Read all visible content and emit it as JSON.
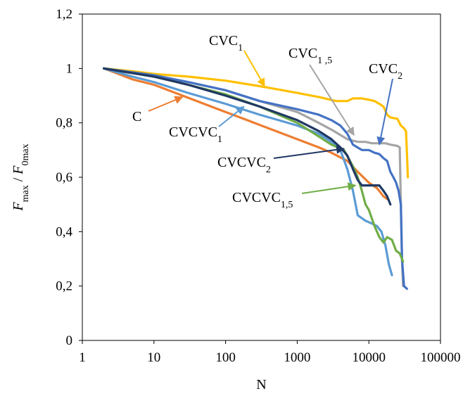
{
  "chart_data": {
    "type": "line",
    "xlabel": "N",
    "ylabel": {
      "f": "F",
      "max": "max",
      "sep": " / ",
      "f0": "F",
      "zeromax": "0max"
    },
    "xscale": "log",
    "xlim": [
      1,
      100000
    ],
    "ylim": [
      0,
      1.2
    ],
    "x_ticks": [
      "1",
      "10",
      "100",
      "1000",
      "10000",
      "100000"
    ],
    "y_ticks": [
      "0",
      "0,2",
      "0,4",
      "0,6",
      "0,8",
      "1",
      "1,2"
    ],
    "grid": false,
    "legend": "none",
    "series": [
      {
        "label_main": "C",
        "label_sub": "",
        "color": "#ED7D31",
        "points": [
          [
            2,
            1.0
          ],
          [
            5,
            0.96
          ],
          [
            10,
            0.94
          ],
          [
            20,
            0.91
          ],
          [
            50,
            0.87
          ],
          [
            100,
            0.84
          ],
          [
            200,
            0.81
          ],
          [
            500,
            0.77
          ],
          [
            1000,
            0.74
          ],
          [
            2000,
            0.71
          ],
          [
            3000,
            0.69
          ],
          [
            5000,
            0.66
          ],
          [
            7000,
            0.62
          ],
          [
            10000,
            0.58
          ],
          [
            13000,
            0.56
          ],
          [
            16000,
            0.53
          ],
          [
            18000,
            0.52
          ]
        ]
      },
      {
        "label_main": "CVC",
        "label_sub": "1",
        "color": "#FFC000",
        "points": [
          [
            2,
            1.0
          ],
          [
            5,
            0.99
          ],
          [
            10,
            0.98
          ],
          [
            30,
            0.97
          ],
          [
            100,
            0.955
          ],
          [
            300,
            0.935
          ],
          [
            1000,
            0.91
          ],
          [
            2000,
            0.895
          ],
          [
            3500,
            0.88
          ],
          [
            5000,
            0.88
          ],
          [
            6000,
            0.89
          ],
          [
            8000,
            0.89
          ],
          [
            10000,
            0.885
          ],
          [
            12000,
            0.88
          ],
          [
            14000,
            0.87
          ],
          [
            16000,
            0.86
          ],
          [
            18000,
            0.83
          ],
          [
            20000,
            0.82
          ],
          [
            25000,
            0.815
          ],
          [
            28000,
            0.79
          ],
          [
            31000,
            0.78
          ],
          [
            33000,
            0.77
          ],
          [
            34000,
            0.69
          ],
          [
            35000,
            0.6
          ]
        ]
      },
      {
        "label_main": "CVC",
        "label_sub": "1,5",
        "color": "#A5A5A5",
        "points": [
          [
            2,
            1.0
          ],
          [
            10,
            0.975
          ],
          [
            30,
            0.95
          ],
          [
            100,
            0.92
          ],
          [
            300,
            0.88
          ],
          [
            1000,
            0.84
          ],
          [
            2000,
            0.8
          ],
          [
            3000,
            0.775
          ],
          [
            5000,
            0.74
          ],
          [
            7000,
            0.73
          ],
          [
            9000,
            0.73
          ],
          [
            11000,
            0.725
          ],
          [
            14000,
            0.725
          ],
          [
            17000,
            0.725
          ],
          [
            20000,
            0.72
          ],
          [
            25000,
            0.715
          ],
          [
            27000,
            0.71
          ],
          [
            28000,
            0.5
          ],
          [
            29000,
            0.3
          ],
          [
            30000,
            0.2
          ]
        ]
      },
      {
        "label_main": "CVC",
        "label_sub": "2",
        "color": "#4472C4",
        "points": [
          [
            2,
            1.0
          ],
          [
            10,
            0.975
          ],
          [
            30,
            0.95
          ],
          [
            100,
            0.92
          ],
          [
            300,
            0.88
          ],
          [
            1000,
            0.85
          ],
          [
            2000,
            0.83
          ],
          [
            3000,
            0.81
          ],
          [
            4000,
            0.79
          ],
          [
            5000,
            0.76
          ],
          [
            6000,
            0.72
          ],
          [
            8000,
            0.7
          ],
          [
            10000,
            0.7
          ],
          [
            12000,
            0.69
          ],
          [
            14000,
            0.685
          ],
          [
            16000,
            0.67
          ],
          [
            18000,
            0.66
          ],
          [
            20000,
            0.62
          ],
          [
            22000,
            0.6
          ],
          [
            24000,
            0.58
          ],
          [
            26000,
            0.55
          ],
          [
            28000,
            0.5
          ],
          [
            29000,
            0.3
          ],
          [
            31000,
            0.2
          ],
          [
            34000,
            0.19
          ]
        ]
      },
      {
        "label_main": "CVCVC",
        "label_sub": "1",
        "color": "#5B9BD5",
        "points": [
          [
            2,
            1.0
          ],
          [
            5,
            0.97
          ],
          [
            10,
            0.95
          ],
          [
            30,
            0.91
          ],
          [
            100,
            0.87
          ],
          [
            300,
            0.83
          ],
          [
            1000,
            0.79
          ],
          [
            2000,
            0.76
          ],
          [
            3000,
            0.73
          ],
          [
            4000,
            0.7
          ],
          [
            5000,
            0.63
          ],
          [
            6000,
            0.55
          ],
          [
            7000,
            0.46
          ],
          [
            9000,
            0.44
          ],
          [
            11000,
            0.43
          ],
          [
            13000,
            0.42
          ],
          [
            15000,
            0.4
          ],
          [
            17000,
            0.35
          ],
          [
            19000,
            0.28
          ],
          [
            21000,
            0.24
          ]
        ]
      },
      {
        "label_main": "CVCVC",
        "label_sub": "1,5",
        "color": "#70AD47",
        "points": [
          [
            2,
            1.0
          ],
          [
            10,
            0.97
          ],
          [
            30,
            0.94
          ],
          [
            100,
            0.905
          ],
          [
            300,
            0.86
          ],
          [
            1000,
            0.8
          ],
          [
            2000,
            0.75
          ],
          [
            3000,
            0.72
          ],
          [
            4500,
            0.7
          ],
          [
            6000,
            0.64
          ],
          [
            7000,
            0.6
          ],
          [
            8000,
            0.55
          ],
          [
            9000,
            0.5
          ],
          [
            10000,
            0.48
          ],
          [
            12000,
            0.42
          ],
          [
            14000,
            0.38
          ],
          [
            16000,
            0.36
          ],
          [
            18000,
            0.38
          ],
          [
            21000,
            0.37
          ],
          [
            24000,
            0.33
          ],
          [
            27000,
            0.32
          ],
          [
            30000,
            0.29
          ]
        ]
      },
      {
        "label_main": "CVCVC",
        "label_sub": "2",
        "color": "#203864",
        "points": [
          [
            2,
            1.0
          ],
          [
            10,
            0.97
          ],
          [
            30,
            0.94
          ],
          [
            100,
            0.9
          ],
          [
            300,
            0.86
          ],
          [
            1000,
            0.81
          ],
          [
            2000,
            0.77
          ],
          [
            3000,
            0.74
          ],
          [
            4000,
            0.71
          ],
          [
            5000,
            0.68
          ],
          [
            6000,
            0.63
          ],
          [
            7000,
            0.59
          ],
          [
            8000,
            0.57
          ],
          [
            10000,
            0.57
          ],
          [
            12000,
            0.57
          ],
          [
            14000,
            0.57
          ],
          [
            16000,
            0.55
          ],
          [
            18000,
            0.53
          ],
          [
            20000,
            0.5
          ]
        ]
      }
    ],
    "annotations": [
      {
        "label_main": "CVC",
        "label_sub": "1",
        "arrow_color": "#FFC000",
        "arrow_to": [
          350,
          0.935
        ]
      },
      {
        "label_main": "CVC",
        "label_sub": "1 ,5",
        "arrow_color": "#A5A5A5",
        "arrow_to": [
          6200,
          0.755
        ]
      },
      {
        "label_main": "CVC",
        "label_sub": "2",
        "arrow_color": "#4472C4",
        "arrow_to": [
          14000,
          0.72
        ]
      },
      {
        "label_main": "C",
        "label_sub": "",
        "arrow_color": "#ED7D31",
        "arrow_to": [
          25,
          0.895
        ]
      },
      {
        "label_main": "CVCVC",
        "label_sub": "1",
        "arrow_color": "#5B9BD5",
        "arrow_to": [
          180,
          0.86
        ]
      },
      {
        "label_main": "CVCVC",
        "label_sub": "2",
        "arrow_color": "#203864",
        "arrow_to": [
          4500,
          0.705
        ]
      },
      {
        "label_main": "CVCVC",
        "label_sub": "1,5",
        "arrow_color": "#70AD47",
        "arrow_to": [
          6500,
          0.57
        ]
      }
    ]
  }
}
